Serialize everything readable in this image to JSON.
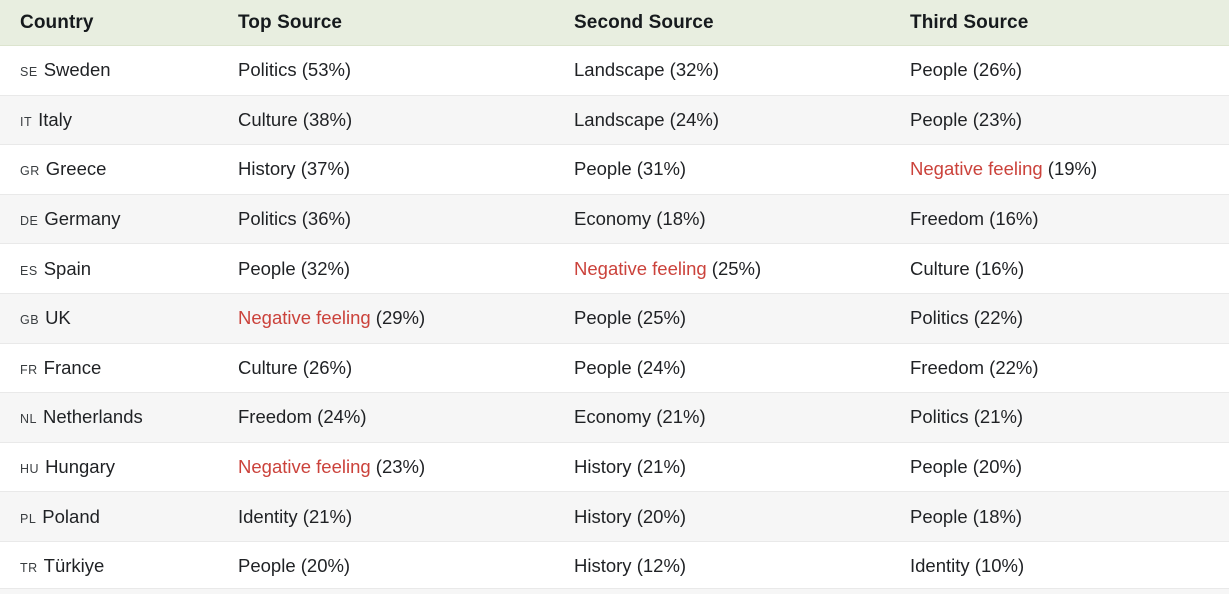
{
  "colors": {
    "header_bg": "#e8eee0",
    "header_text": "#161a1d",
    "text": "#1f2124",
    "row_alt_bg": "#f6f6f6",
    "divider": "#e9e9e9",
    "negative_text": "#cb423b"
  },
  "chart_data": {
    "type": "table",
    "columns": [
      "Country",
      "Top Source",
      "Second Source",
      "Third Source"
    ],
    "rows": [
      {
        "code": "SE",
        "country": "Sweden",
        "sources": [
          {
            "label": "Politics",
            "pct": "(53%)",
            "negative": false
          },
          {
            "label": "Landscape",
            "pct": "(32%)",
            "negative": false
          },
          {
            "label": "People",
            "pct": "(26%)",
            "negative": false
          }
        ]
      },
      {
        "code": "IT",
        "country": "Italy",
        "sources": [
          {
            "label": "Culture",
            "pct": "(38%)",
            "negative": false
          },
          {
            "label": "Landscape",
            "pct": "(24%)",
            "negative": false
          },
          {
            "label": "People",
            "pct": "(23%)",
            "negative": false
          }
        ]
      },
      {
        "code": "GR",
        "country": "Greece",
        "sources": [
          {
            "label": "History",
            "pct": "(37%)",
            "negative": false
          },
          {
            "label": "People",
            "pct": "(31%)",
            "negative": false
          },
          {
            "label": "Negative feeling",
            "pct": "(19%)",
            "negative": true
          }
        ]
      },
      {
        "code": "DE",
        "country": "Germany",
        "sources": [
          {
            "label": "Politics",
            "pct": "(36%)",
            "negative": false
          },
          {
            "label": "Economy",
            "pct": "(18%)",
            "negative": false
          },
          {
            "label": "Freedom",
            "pct": "(16%)",
            "negative": false
          }
        ]
      },
      {
        "code": "ES",
        "country": "Spain",
        "sources": [
          {
            "label": "People",
            "pct": "(32%)",
            "negative": false
          },
          {
            "label": "Negative feeling",
            "pct": "(25%)",
            "negative": true
          },
          {
            "label": "Culture",
            "pct": "(16%)",
            "negative": false
          }
        ]
      },
      {
        "code": "GB",
        "country": "UK",
        "sources": [
          {
            "label": "Negative feeling",
            "pct": "(29%)",
            "negative": true
          },
          {
            "label": "People",
            "pct": "(25%)",
            "negative": false
          },
          {
            "label": "Politics",
            "pct": "(22%)",
            "negative": false
          }
        ]
      },
      {
        "code": "FR",
        "country": "France",
        "sources": [
          {
            "label": "Culture",
            "pct": "(26%)",
            "negative": false
          },
          {
            "label": "People",
            "pct": "(24%)",
            "negative": false
          },
          {
            "label": "Freedom",
            "pct": "(22%)",
            "negative": false
          }
        ]
      },
      {
        "code": "NL",
        "country": "Netherlands",
        "sources": [
          {
            "label": "Freedom",
            "pct": "(24%)",
            "negative": false
          },
          {
            "label": "Economy",
            "pct": "(21%)",
            "negative": false
          },
          {
            "label": "Politics",
            "pct": "(21%)",
            "negative": false
          }
        ]
      },
      {
        "code": "HU",
        "country": "Hungary",
        "sources": [
          {
            "label": "Negative feeling",
            "pct": "(23%)",
            "negative": true
          },
          {
            "label": "History",
            "pct": "(21%)",
            "negative": false
          },
          {
            "label": "People",
            "pct": "(20%)",
            "negative": false
          }
        ]
      },
      {
        "code": "PL",
        "country": "Poland",
        "sources": [
          {
            "label": "Identity",
            "pct": "(21%)",
            "negative": false
          },
          {
            "label": "History",
            "pct": "(20%)",
            "negative": false
          },
          {
            "label": "People",
            "pct": "(18%)",
            "negative": false
          }
        ]
      },
      {
        "code": "TR",
        "country": "Türkiye",
        "sources": [
          {
            "label": "People",
            "pct": "(20%)",
            "negative": false
          },
          {
            "label": "History",
            "pct": "(12%)",
            "negative": false
          },
          {
            "label": "Identity",
            "pct": "(10%)",
            "negative": false
          }
        ]
      }
    ]
  }
}
